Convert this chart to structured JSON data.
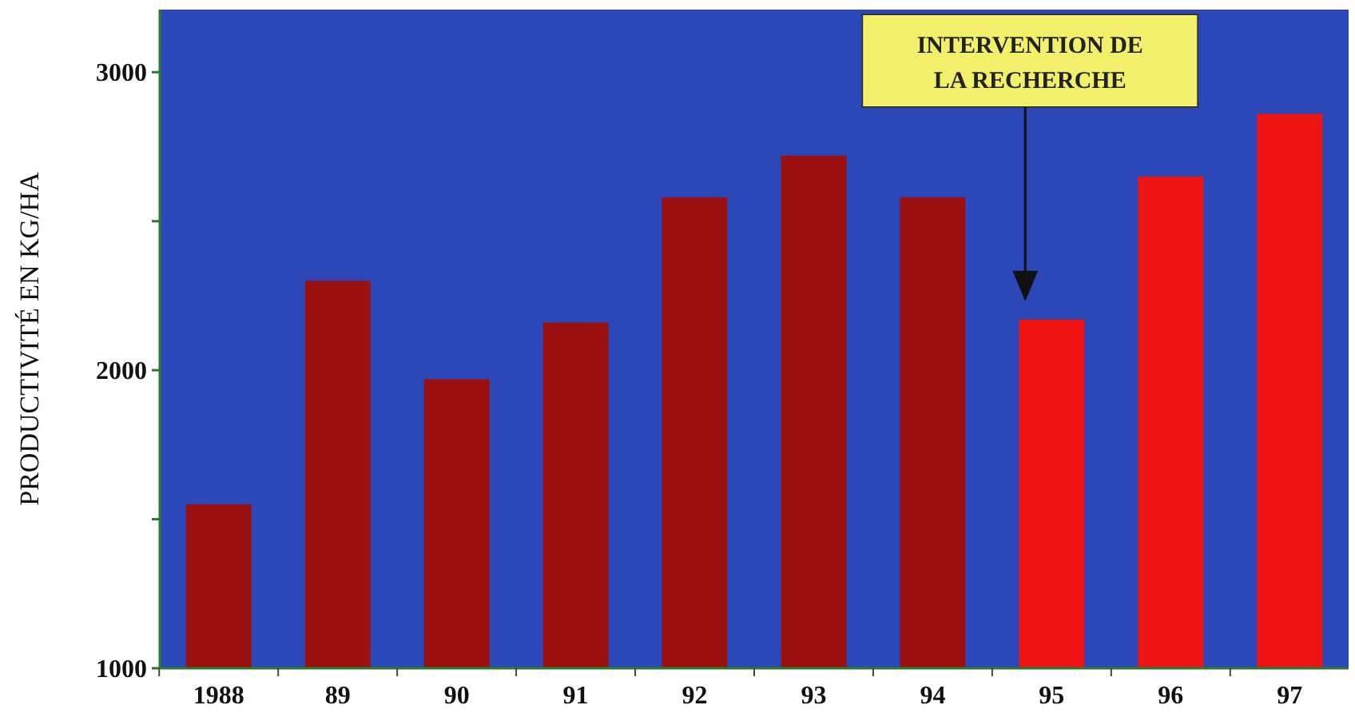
{
  "chart_data": {
    "type": "bar",
    "ylabel": "PRODUCTIVITÉ EN KG/HA",
    "categories": [
      "1988",
      "89",
      "90",
      "91",
      "92",
      "93",
      "94",
      "95",
      "96",
      "97"
    ],
    "values": [
      1550,
      2300,
      1970,
      2160,
      2580,
      2720,
      2580,
      2170,
      2650,
      2860
    ],
    "colors": [
      "#9a1010",
      "#9a1010",
      "#9a1010",
      "#9a1010",
      "#9a1010",
      "#9a1010",
      "#9a1010",
      "#ee1414",
      "#ee1414",
      "#ee1414"
    ],
    "ylim": [
      1000,
      3210
    ],
    "yticks": [
      1000,
      {
        "value": 1500,
        "label": null
      },
      2000,
      {
        "value": 2500,
        "label": null
      },
      3000
    ],
    "annotations": [
      "INTERVENTION DE\nLA RECHERCHE"
    ],
    "grid": false
  }
}
